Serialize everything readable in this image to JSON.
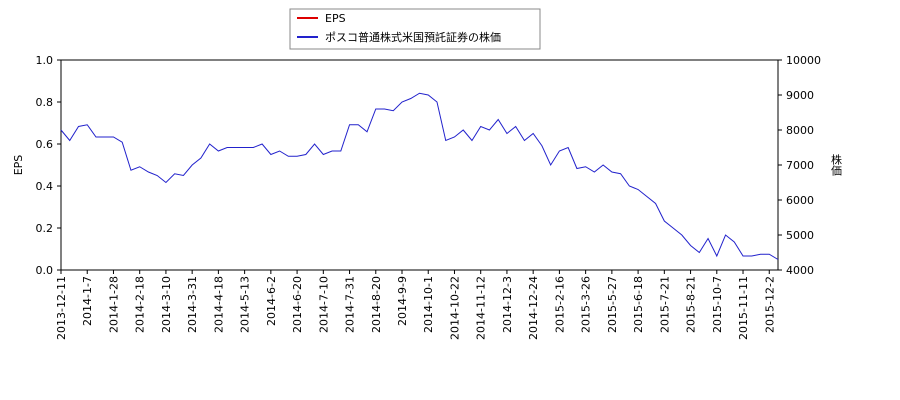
{
  "chart_data": {
    "type": "line",
    "categories": [
      "2013-12-11",
      null,
      null,
      "2014-1-7",
      null,
      null,
      "2014-1-28",
      null,
      null,
      "2014-2-18",
      null,
      null,
      "2014-3-10",
      null,
      null,
      "2014-3-31",
      null,
      null,
      "2014-4-18",
      null,
      null,
      "2014-5-13",
      null,
      null,
      "2014-6-2",
      null,
      null,
      "2014-6-20",
      null,
      null,
      "2014-7-10",
      null,
      null,
      "2014-7-31",
      null,
      null,
      "2014-8-20",
      null,
      null,
      "2014-9-9",
      null,
      null,
      "2014-10-1",
      null,
      null,
      "2014-10-22",
      null,
      null,
      "2014-11-12",
      null,
      null,
      "2014-12-3",
      null,
      null,
      "2014-12-24",
      null,
      null,
      "2015-2-16",
      null,
      null,
      "2015-3-26",
      null,
      null,
      "2015-5-27",
      null,
      null,
      "2015-6-18",
      null,
      null,
      "2015-7-21",
      null,
      null,
      "2015-8-21",
      null,
      null,
      "2015-10-7",
      null,
      null,
      "2015-11-11",
      null,
      null,
      "2015-12-2",
      null
    ],
    "y_label": "EPS",
    "y2_label": "株価",
    "ylim": [
      0,
      1
    ],
    "yticks": [
      {
        "value": 0,
        "label": "0.0"
      },
      0.2,
      0.4,
      0.6,
      0.8,
      {
        "value": 1,
        "label": "1.0"
      }
    ],
    "y2lim": [
      4000,
      10000
    ],
    "y2ticks": [
      4000,
      5000,
      6000,
      7000,
      8000,
      9000,
      10000
    ],
    "grid": false,
    "legend": "top",
    "series": [
      {
        "name": "EPS",
        "color": "#dd0000",
        "values": [
          null,
          null,
          null,
          null,
          null,
          null,
          null,
          null,
          null,
          null,
          null,
          null,
          null,
          null,
          null,
          null,
          null,
          null,
          null,
          null,
          null,
          null,
          null,
          null,
          null,
          null,
          null,
          null,
          null,
          null,
          null,
          null,
          null,
          null,
          null,
          null,
          null,
          null,
          null,
          null,
          null,
          null,
          null,
          null,
          null,
          null,
          null,
          null,
          null,
          null,
          null,
          null,
          null,
          null,
          null,
          null,
          null,
          null,
          null,
          null,
          null,
          null,
          null,
          null,
          null,
          null,
          null,
          null,
          null,
          null,
          null,
          null,
          null,
          null,
          null,
          null,
          null,
          null,
          null,
          null,
          null,
          null,
          null
        ]
      },
      {
        "name": "ポスコ普通株式米国預託証券の株価",
        "color": "#2222cc",
        "axis": "y2",
        "values": [
          8000,
          7700,
          8100,
          8150,
          7800,
          7800,
          7800,
          7650,
          6850,
          6950,
          6800,
          6700,
          6500,
          6750,
          6700,
          7000,
          7200,
          7600,
          7400,
          7500,
          7500,
          7500,
          7500,
          7600,
          7300,
          7400,
          7250,
          7250,
          7300,
          7600,
          7300,
          7400,
          7400,
          8150,
          8150,
          7950,
          8600,
          8600,
          8550,
          8800,
          8900,
          9050,
          9000,
          8800,
          7700,
          7800,
          8000,
          7700,
          8100,
          8000,
          8300,
          7900,
          8100,
          7700,
          7900,
          7550,
          7000,
          7400,
          7500,
          6900,
          6950,
          6800,
          7000,
          6800,
          6750,
          6400,
          6300,
          6100,
          5900,
          5400,
          5200,
          5000,
          4700,
          4500,
          4900,
          4400,
          5000,
          4800,
          4400,
          4400,
          4450,
          4450,
          4300
        ]
      }
    ]
  }
}
